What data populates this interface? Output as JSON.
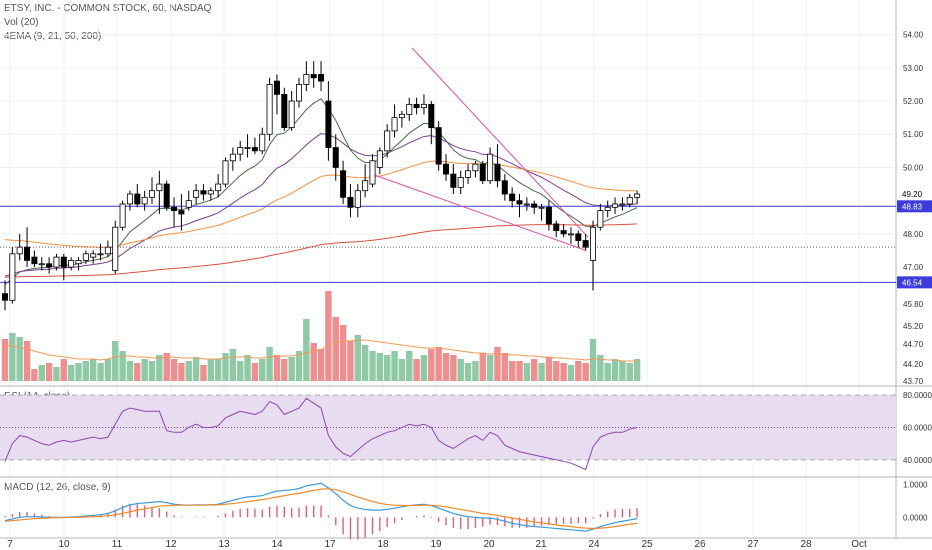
{
  "header": {
    "title": "ETSY, INC. - COMMON STOCK, 60, NASDAQ",
    "vol_legend": "Vol (20)",
    "ema_legend": "4EMA (9, 21, 50, 200)"
  },
  "rsi_legend": "RSI (14, close)",
  "macd_legend": "MACD (12, 26, close, 9)",
  "colors": {
    "up": "#ffffff",
    "down": "#000000",
    "vol_up": "#8fc9a5",
    "vol_down": "#ef8e8e",
    "ema9": "#476b4a",
    "ema21": "#7a3b97",
    "ema50": "#f29041",
    "ema200": "#d9533f",
    "hline": "#3c3cdc",
    "trend": "#e04fa5",
    "rsi": "#8e44ad",
    "macd": "#3b9bd9",
    "signal": "#f08a2c",
    "hist": "#e0607a",
    "rsi_band": "#e8dcf1",
    "vol_ma": "#f09a5a"
  },
  "chart_data": [
    {
      "type": "candlestick",
      "title": "ETSY, INC. - COMMON STOCK, 60, NASDAQ",
      "x_ticks": [
        "7",
        "10",
        "11",
        "12",
        "13",
        "14",
        "17",
        "18",
        "19",
        "20",
        "21",
        "24",
        "25",
        "26",
        "27",
        "28",
        "Oct"
      ],
      "y_ticks": [
        "54.00",
        "53.00",
        "52.00",
        "51.00",
        "50.00",
        "48.00",
        "47.00",
        "45.80",
        "45.20",
        "44.70",
        "44.20",
        "43.70"
      ],
      "ylim": [
        43.6,
        54.5
      ],
      "candles": [
        [
          46.2,
          46.6,
          45.7,
          46.0
        ],
        [
          46.0,
          47.6,
          45.9,
          47.4
        ],
        [
          47.4,
          48.0,
          47.2,
          47.6
        ],
        [
          47.6,
          48.2,
          47.0,
          47.2
        ],
        [
          47.3,
          47.5,
          47.0,
          47.1
        ],
        [
          47.1,
          47.3,
          46.9,
          47.1
        ],
        [
          47.1,
          47.3,
          46.8,
          47.0
        ],
        [
          47.0,
          47.4,
          46.9,
          47.3
        ],
        [
          47.3,
          47.4,
          46.6,
          47.0
        ],
        [
          47.0,
          47.3,
          46.9,
          47.2
        ],
        [
          47.1,
          47.3,
          46.9,
          47.2
        ],
        [
          47.2,
          47.5,
          47.1,
          47.4
        ],
        [
          47.3,
          47.5,
          47.1,
          47.4
        ],
        [
          47.4,
          47.7,
          47.2,
          47.4
        ],
        [
          47.4,
          47.8,
          47.3,
          47.6
        ],
        [
          46.9,
          48.4,
          46.8,
          48.2
        ],
        [
          48.2,
          49.0,
          48.1,
          48.9
        ],
        [
          48.9,
          49.3,
          48.7,
          49.2
        ],
        [
          49.2,
          49.5,
          48.8,
          48.9
        ],
        [
          48.9,
          49.3,
          48.7,
          49.1
        ],
        [
          49.1,
          49.7,
          48.9,
          49.3
        ],
        [
          49.3,
          49.9,
          48.6,
          49.5
        ],
        [
          49.5,
          49.6,
          48.7,
          48.8
        ],
        [
          48.8,
          49.1,
          48.2,
          48.7
        ],
        [
          48.7,
          49.2,
          48.1,
          48.6
        ],
        [
          48.8,
          49.3,
          48.7,
          49.0
        ],
        [
          49.1,
          49.5,
          48.9,
          49.3
        ],
        [
          49.3,
          49.5,
          49.0,
          49.2
        ],
        [
          49.2,
          49.4,
          49.0,
          49.3
        ],
        [
          49.3,
          49.8,
          49.1,
          49.5
        ],
        [
          49.5,
          50.3,
          49.4,
          50.2
        ],
        [
          50.2,
          50.6,
          49.9,
          50.4
        ],
        [
          50.4,
          50.8,
          50.2,
          50.6
        ],
        [
          50.6,
          51.0,
          50.3,
          50.6
        ],
        [
          50.6,
          50.9,
          50.4,
          50.5
        ],
        [
          50.5,
          51.2,
          50.4,
          51.0
        ],
        [
          51.0,
          52.7,
          50.8,
          52.5
        ],
        [
          52.6,
          52.8,
          51.6,
          52.2
        ],
        [
          52.2,
          52.4,
          51.1,
          51.2
        ],
        [
          51.2,
          52.3,
          51.1,
          52.0
        ],
        [
          52.0,
          52.7,
          51.8,
          52.5
        ],
        [
          52.5,
          53.2,
          52.3,
          52.8
        ],
        [
          52.8,
          53.2,
          52.4,
          52.7
        ],
        [
          52.8,
          53.2,
          52.3,
          52.6
        ],
        [
          52.0,
          52.6,
          50.2,
          50.6
        ],
        [
          50.6,
          51.0,
          49.6,
          50.0
        ],
        [
          49.9,
          50.2,
          48.9,
          49.1
        ],
        [
          49.1,
          49.5,
          48.5,
          48.8
        ],
        [
          48.8,
          49.5,
          48.5,
          49.3
        ],
        [
          49.3,
          50.1,
          49.1,
          49.6
        ],
        [
          49.5,
          50.4,
          49.4,
          50.2
        ],
        [
          50.0,
          50.6,
          49.8,
          50.5
        ],
        [
          50.5,
          51.3,
          50.3,
          51.1
        ],
        [
          51.1,
          51.9,
          50.9,
          51.5
        ],
        [
          51.5,
          51.7,
          51.2,
          51.6
        ],
        [
          51.6,
          52.1,
          51.4,
          51.9
        ],
        [
          51.9,
          52.1,
          51.6,
          51.8
        ],
        [
          51.8,
          52.2,
          51.6,
          51.9
        ],
        [
          51.9,
          52.0,
          50.7,
          51.2
        ],
        [
          51.2,
          51.4,
          49.9,
          50.1
        ],
        [
          50.1,
          50.4,
          49.6,
          49.8
        ],
        [
          49.8,
          50.1,
          49.2,
          49.4
        ],
        [
          49.4,
          49.9,
          49.2,
          49.7
        ],
        [
          49.7,
          50.1,
          49.5,
          49.9
        ],
        [
          49.9,
          50.2,
          49.7,
          50.1
        ],
        [
          50.1,
          50.2,
          49.5,
          49.6
        ],
        [
          49.6,
          50.6,
          49.5,
          50.4
        ],
        [
          50.1,
          50.7,
          49.4,
          49.6
        ],
        [
          49.6,
          49.8,
          49.0,
          49.2
        ],
        [
          49.2,
          49.4,
          48.8,
          49.0
        ],
        [
          49.0,
          49.2,
          48.5,
          48.9
        ],
        [
          48.9,
          49.1,
          48.7,
          48.9
        ],
        [
          48.9,
          49.0,
          48.6,
          48.8
        ],
        [
          48.8,
          48.9,
          48.4,
          48.8
        ],
        [
          48.8,
          49.0,
          48.1,
          48.3
        ],
        [
          48.3,
          48.4,
          47.9,
          48.1
        ],
        [
          48.1,
          48.3,
          47.9,
          48.0
        ],
        [
          48.0,
          48.2,
          47.7,
          48.0
        ],
        [
          48.0,
          48.1,
          47.6,
          47.8
        ],
        [
          47.8,
          48.0,
          47.5,
          47.6
        ],
        [
          47.2,
          48.4,
          46.3,
          48.2
        ],
        [
          48.2,
          48.9,
          48.1,
          48.7
        ],
        [
          48.7,
          49.0,
          48.5,
          48.8
        ],
        [
          48.8,
          49.1,
          48.6,
          48.9
        ],
        [
          48.9,
          49.1,
          48.7,
          48.9
        ],
        [
          48.9,
          49.2,
          48.8,
          49.1
        ],
        [
          49.1,
          49.3,
          48.9,
          49.2
        ]
      ],
      "horizontal_levels": [
        48.83,
        46.54
      ],
      "dotted_level": 47.6,
      "last_price": "49.20",
      "price_labels": [
        "48.83",
        "46.54"
      ],
      "volume": {
        "legend": "Vol (20)",
        "values": [
          42,
          48,
          44,
          40,
          12,
          16,
          18,
          14,
          22,
          16,
          18,
          20,
          22,
          18,
          22,
          40,
          30,
          20,
          18,
          22,
          20,
          26,
          28,
          22,
          18,
          20,
          24,
          16,
          22,
          22,
          28,
          32,
          20,
          26,
          18,
          22,
          34,
          26,
          22,
          24,
          30,
          62,
          38,
          32,
          90,
          64,
          56,
          40,
          46,
          36,
          30,
          28,
          26,
          30,
          22,
          30,
          22,
          26,
          32,
          34,
          28,
          26,
          22,
          18,
          20,
          28,
          26,
          34,
          28,
          20,
          20,
          18,
          22,
          18,
          24,
          20,
          18,
          16,
          20,
          18,
          42,
          26,
          18,
          22,
          20,
          18,
          22
        ],
        "ma": [
          36,
          35,
          33,
          32,
          30,
          28,
          26,
          25,
          24,
          23,
          22,
          22,
          22,
          21,
          22,
          24,
          25,
          25,
          24,
          24,
          23,
          23,
          24,
          24,
          23,
          23,
          23,
          22,
          22,
          22,
          23,
          24,
          24,
          24,
          23,
          23,
          24,
          25,
          25,
          25,
          26,
          28,
          30,
          31,
          36,
          38,
          40,
          40,
          41,
          41,
          40,
          39,
          38,
          37,
          36,
          35,
          34,
          33,
          33,
          33,
          32,
          31,
          30,
          29,
          28,
          28,
          27,
          27,
          27,
          26,
          26,
          25,
          25,
          24,
          24,
          23,
          23,
          22,
          22,
          21,
          22,
          22,
          21,
          21,
          20,
          20,
          20
        ]
      },
      "ema_names": [
        "9",
        "21",
        "50",
        "200"
      ]
    },
    {
      "type": "line",
      "title": "RSI (14, close)",
      "y_ticks": [
        "80.0000",
        "60.0000",
        "40.0000"
      ],
      "ylim": [
        30,
        85
      ],
      "band": [
        40,
        80
      ],
      "midline": 60,
      "values": [
        39,
        50,
        55,
        54,
        52,
        50,
        49,
        51,
        52,
        51,
        52,
        53,
        54,
        53,
        54,
        62,
        70,
        72,
        71,
        70,
        70,
        70,
        58,
        57,
        57,
        60,
        62,
        60,
        60,
        61,
        66,
        68,
        70,
        69,
        68,
        70,
        76,
        74,
        68,
        70,
        72,
        78,
        75,
        72,
        55,
        48,
        44,
        42,
        46,
        50,
        53,
        55,
        57,
        58,
        60,
        62,
        61,
        62,
        60,
        52,
        49,
        47,
        50,
        53,
        55,
        52,
        57,
        55,
        49,
        47,
        45,
        44,
        43,
        42,
        41,
        40,
        39,
        38,
        36,
        34,
        48,
        54,
        56,
        57,
        57,
        59,
        60
      ]
    },
    {
      "type": "line",
      "title": "MACD (12, 26, close, 9)",
      "y_ticks": [
        "1.0000",
        "0.0000"
      ],
      "ylim": [
        -0.6,
        1.2
      ],
      "macd": [
        -0.1,
        -0.05,
        0.0,
        0.02,
        0.02,
        0.01,
        0.0,
        0.0,
        0.0,
        0.01,
        0.02,
        0.04,
        0.06,
        0.08,
        0.12,
        0.2,
        0.3,
        0.38,
        0.42,
        0.44,
        0.46,
        0.48,
        0.45,
        0.4,
        0.38,
        0.37,
        0.38,
        0.38,
        0.38,
        0.4,
        0.46,
        0.52,
        0.58,
        0.62,
        0.64,
        0.66,
        0.74,
        0.8,
        0.82,
        0.84,
        0.88,
        0.96,
        1.0,
        1.04,
        0.9,
        0.72,
        0.52,
        0.36,
        0.28,
        0.24,
        0.22,
        0.22,
        0.24,
        0.28,
        0.32,
        0.36,
        0.38,
        0.4,
        0.36,
        0.28,
        0.2,
        0.12,
        0.06,
        0.02,
        0.0,
        -0.02,
        -0.02,
        -0.06,
        -0.12,
        -0.18,
        -0.22,
        -0.26,
        -0.28,
        -0.3,
        -0.32,
        -0.34,
        -0.36,
        -0.38,
        -0.4,
        -0.42,
        -0.36,
        -0.28,
        -0.22,
        -0.16,
        -0.12,
        -0.08,
        -0.04
      ],
      "signal": [
        -0.12,
        -0.1,
        -0.08,
        -0.06,
        -0.04,
        -0.03,
        -0.02,
        -0.01,
        -0.01,
        0.0,
        0.0,
        0.01,
        0.02,
        0.03,
        0.05,
        0.08,
        0.12,
        0.17,
        0.22,
        0.26,
        0.3,
        0.34,
        0.36,
        0.37,
        0.37,
        0.37,
        0.37,
        0.37,
        0.38,
        0.38,
        0.4,
        0.42,
        0.45,
        0.48,
        0.51,
        0.54,
        0.58,
        0.62,
        0.66,
        0.7,
        0.73,
        0.78,
        0.82,
        0.86,
        0.87,
        0.84,
        0.78,
        0.7,
        0.62,
        0.55,
        0.48,
        0.43,
        0.39,
        0.37,
        0.36,
        0.36,
        0.36,
        0.37,
        0.37,
        0.35,
        0.32,
        0.28,
        0.24,
        0.2,
        0.16,
        0.12,
        0.09,
        0.06,
        0.02,
        -0.02,
        -0.06,
        -0.1,
        -0.14,
        -0.17,
        -0.2,
        -0.23,
        -0.26,
        -0.28,
        -0.31,
        -0.33,
        -0.34,
        -0.33,
        -0.31,
        -0.28,
        -0.25,
        -0.21,
        -0.18
      ]
    }
  ]
}
